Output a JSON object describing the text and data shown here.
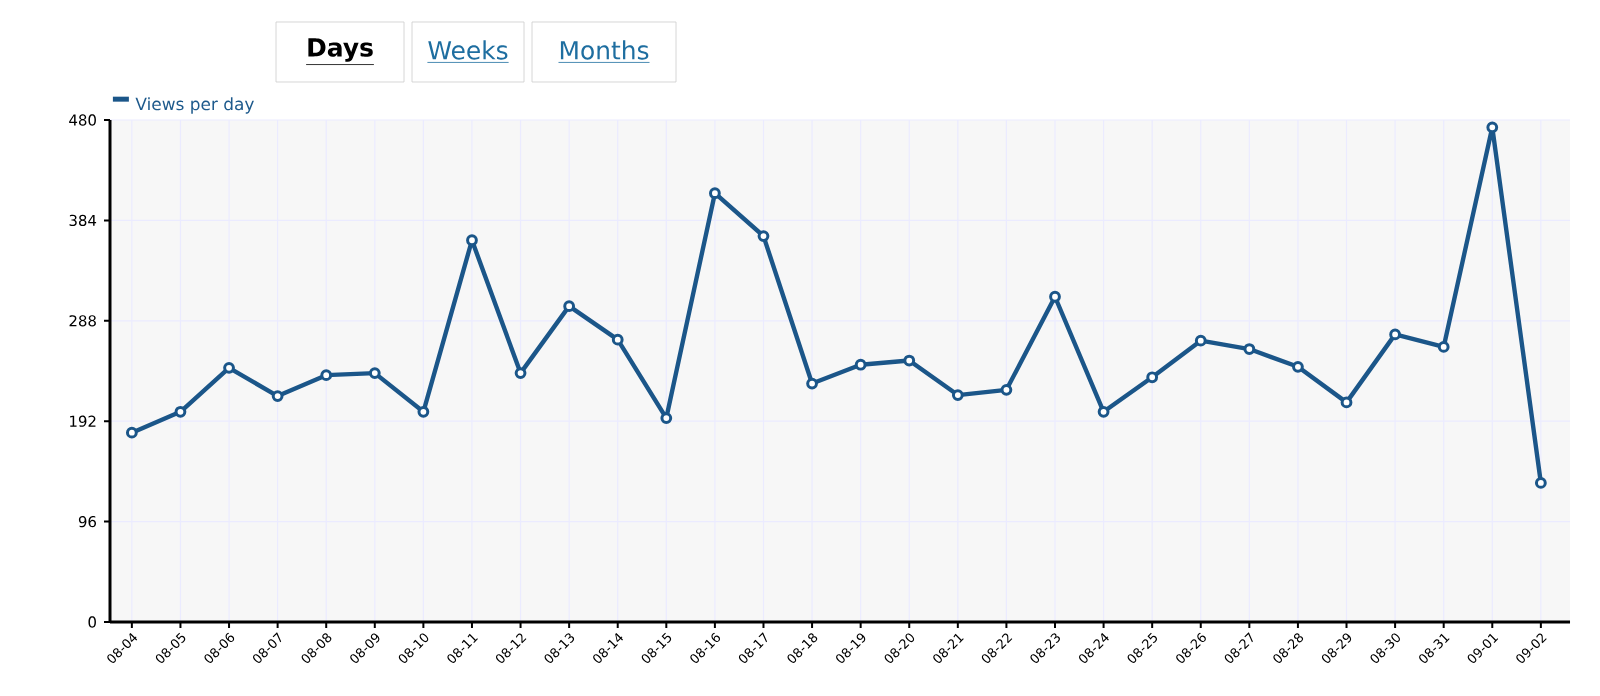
{
  "chart_data": {
    "type": "line",
    "annotations": [
      "Days",
      "Weeks",
      "Months"
    ],
    "categories": [
      "08-04",
      "08-05",
      "08-06",
      "08-07",
      "08-08",
      "08-09",
      "08-10",
      "08-11",
      "08-12",
      "08-13",
      "08-14",
      "08-15",
      "08-16",
      "08-17",
      "08-18",
      "08-19",
      "08-20",
      "08-21",
      "08-22",
      "08-23",
      "08-24",
      "08-25",
      "08-26",
      "08-27",
      "08-28",
      "08-29",
      "08-30",
      "08-31",
      "09-01",
      "09-02"
    ],
    "series": [
      {
        "name": "Views per day",
        "color": "#1b5689",
        "values": [
          181,
          201,
          243,
          216,
          236,
          238,
          201,
          365,
          238,
          302,
          270,
          195,
          410,
          369,
          228,
          246,
          250,
          217,
          222,
          311,
          201,
          234,
          269,
          261,
          244,
          210,
          275,
          263,
          473,
          133
        ]
      }
    ],
    "ylim": [
      0,
      480
    ],
    "yticks": [
      0,
      96,
      192,
      288,
      384,
      480
    ],
    "grid": true,
    "legend": "top left",
    "marker": "circle",
    "line_style": "solid"
  }
}
